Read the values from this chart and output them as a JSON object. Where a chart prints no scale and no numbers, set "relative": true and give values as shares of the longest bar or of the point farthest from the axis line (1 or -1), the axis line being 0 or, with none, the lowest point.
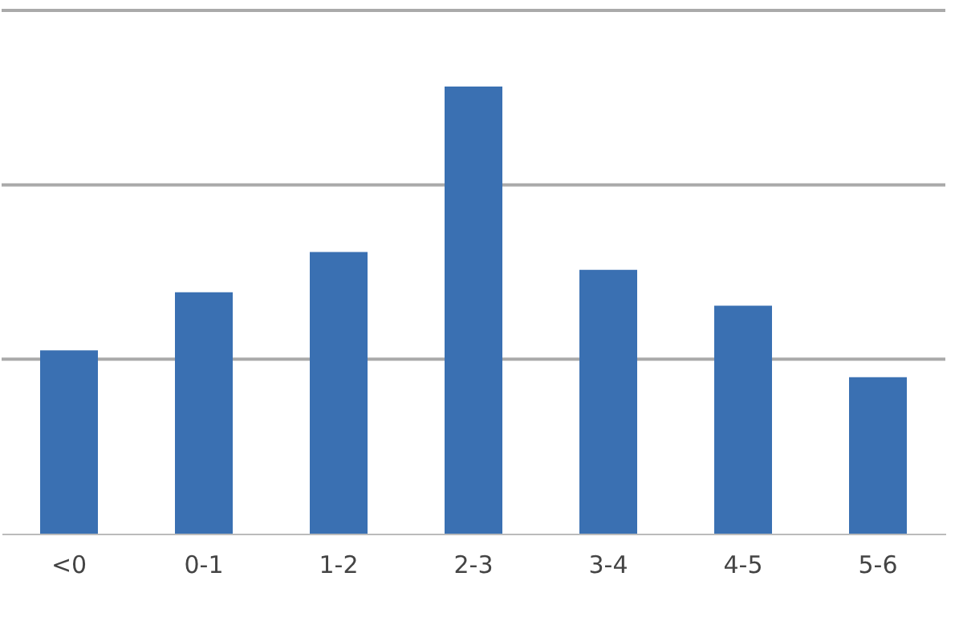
{
  "chart_data": {
    "type": "bar",
    "relative": true,
    "categories": [
      "<0",
      "0-1",
      "1-2",
      "2-3",
      "3-4",
      "4-5",
      "5-6"
    ],
    "values": [
      0.41,
      0.54,
      0.63,
      1,
      0.59,
      0.51,
      0.35
    ],
    "color": "#3a70b2",
    "ref_lines": [
      {
        "axis": "y",
        "value": 0.39,
        "color": "#aaaaaa"
      },
      {
        "axis": "y",
        "value": 0.78,
        "color": "#aaaaaa"
      },
      {
        "axis": "y",
        "value": 1.17,
        "color": "#aaaaaa"
      }
    ]
  }
}
